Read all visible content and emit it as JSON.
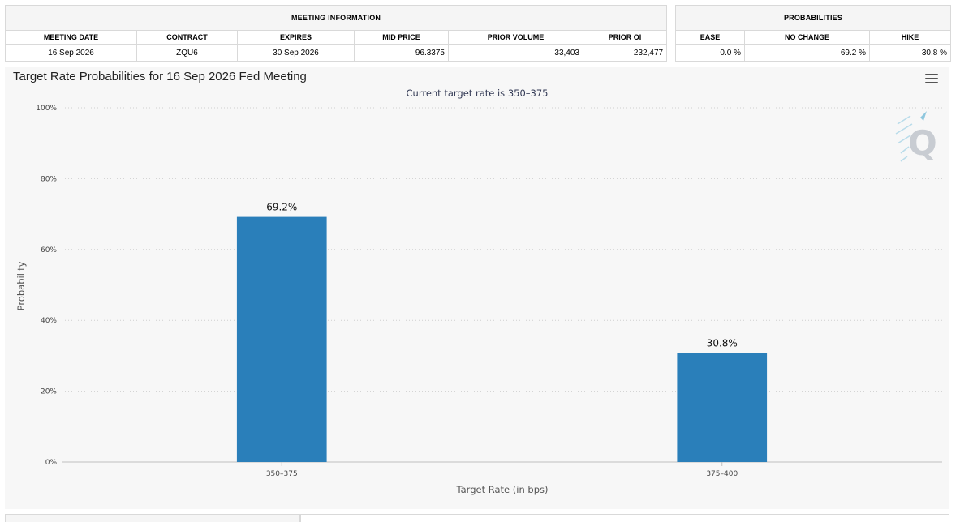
{
  "meeting_info": {
    "group_header": "MEETING INFORMATION",
    "columns": [
      "MEETING DATE",
      "CONTRACT",
      "EXPIRES",
      "MID PRICE",
      "PRIOR VOLUME",
      "PRIOR OI"
    ],
    "row": {
      "meeting_date": "16 Sep 2026",
      "contract": "ZQU6",
      "expires": "30 Sep 2026",
      "mid_price": "96.3375",
      "prior_volume": "33,403",
      "prior_oi": "232,477"
    }
  },
  "probabilities": {
    "group_header": "PROBABILITIES",
    "columns": [
      "EASE",
      "NO CHANGE",
      "HIKE"
    ],
    "row": {
      "ease": "0.0 %",
      "no_change": "69.2 %",
      "hike": "30.8 %"
    }
  },
  "chart_data": {
    "type": "bar",
    "title": "Target Rate Probabilities for 16 Sep 2026 Fed Meeting",
    "subtitle": "Current target rate is 350–375",
    "xlabel": "Target Rate (in bps)",
    "ylabel": "Probability",
    "categories": [
      "350–375",
      "375–400"
    ],
    "values": [
      69.2,
      30.8
    ],
    "data_labels": [
      "69.2%",
      "30.8%"
    ],
    "ylim": [
      0,
      100
    ],
    "yticks": [
      0,
      20,
      40,
      60,
      80,
      100
    ],
    "ytick_labels": [
      "0%",
      "20%",
      "40%",
      "60%",
      "80%",
      "100%"
    ],
    "grid": true,
    "bar_color": "#2a7fba",
    "watermark_icon": "q-logo-icon"
  }
}
